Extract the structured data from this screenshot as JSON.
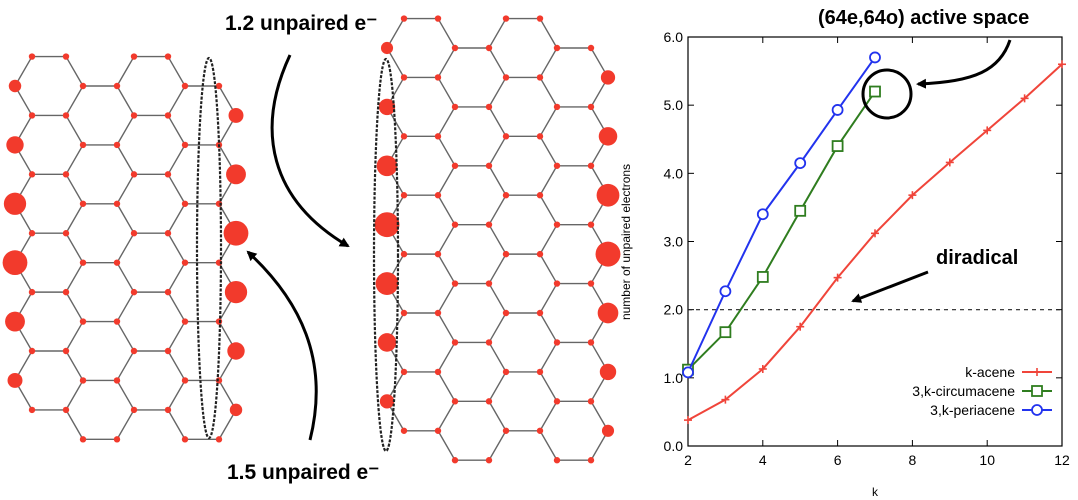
{
  "annotations": {
    "top_label": "1.2 unpaired e⁻",
    "bottom_label": "1.5 unpaired e⁻",
    "active_space": "(64e,64o) active space",
    "diradical": "diradical"
  },
  "colors": {
    "acene": "#f0453a",
    "circumacene": "#2f7d1f",
    "periacene": "#2233ee",
    "atom": "#f23a2c",
    "bond": "#666666"
  },
  "chart_data": {
    "type": "line",
    "title": "",
    "xlabel": "k",
    "ylabel": "number of unpaired electrons",
    "xlim": [
      2,
      12
    ],
    "ylim": [
      0,
      6
    ],
    "xticks": [
      2,
      4,
      6,
      8,
      10,
      12
    ],
    "yticks": [
      0,
      1,
      2,
      3,
      4,
      5,
      6
    ],
    "grid": false,
    "legend_position": "bottom-right",
    "reference_line": {
      "y": 2.0,
      "style": "dashed"
    },
    "series": [
      {
        "name": "k-acene",
        "marker": "plus",
        "x": [
          2,
          3,
          4,
          5,
          6,
          7,
          8,
          9,
          10,
          11,
          12
        ],
        "y": [
          0.38,
          0.68,
          1.13,
          1.75,
          2.47,
          3.12,
          3.68,
          4.16,
          4.63,
          5.1,
          5.6
        ]
      },
      {
        "name": "3,k-circumacene",
        "marker": "square",
        "x": [
          2,
          3,
          4,
          5,
          6,
          7
        ],
        "y": [
          1.12,
          1.67,
          2.48,
          3.45,
          4.4,
          5.2
        ]
      },
      {
        "name": "3,k-periacene",
        "marker": "circle",
        "x": [
          2,
          3,
          4,
          5,
          6,
          7
        ],
        "y": [
          1.08,
          2.27,
          3.4,
          4.15,
          4.93,
          5.7
        ]
      }
    ]
  }
}
